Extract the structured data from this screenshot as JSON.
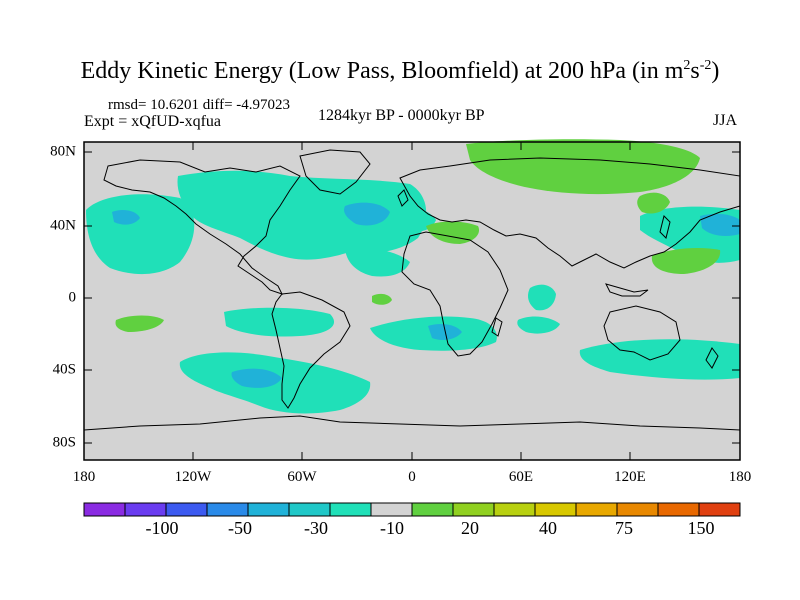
{
  "title": {
    "main": "Eddy Kinetic Energy (Low Pass, Bloomfield) at 200 hPa (in m",
    "sup1": "2",
    "mid": "s",
    "sup2": "-2",
    "end": ")"
  },
  "stats": "rmsd= 10.6201 diff= -4.97023",
  "expt": "Expt = xQfUD-xqfua",
  "period": "1284kyr BP - 0000kyr BP",
  "season": "JJA",
  "lat_labels": [
    "80N",
    "40N",
    "0",
    "40S",
    "80S"
  ],
  "lon_labels": [
    "180",
    "120W",
    "60W",
    "0",
    "60E",
    "120E",
    "180"
  ],
  "colorbar": {
    "colors": [
      "#8a2be2",
      "#6a3cf0",
      "#3c5af0",
      "#2a8ae8",
      "#20b2d8",
      "#20c8c8",
      "#20e0b8",
      "#d3d3d3",
      "#60d040",
      "#90d020",
      "#b8d010",
      "#d8c800",
      "#e8a800",
      "#e88800",
      "#e86800",
      "#e04010"
    ],
    "labels": [
      "-100",
      "-50",
      "-30",
      "-10",
      "20",
      "40",
      "75",
      "150"
    ]
  },
  "palette": {
    "ocean_bg": "#d3d3d3",
    "neg_fill": "#20e0b8",
    "neg_strong": "#20c8c8",
    "neg_core": "#20b2d8",
    "pos_fill": "#60d040",
    "pos_strong": "#90d020"
  }
}
